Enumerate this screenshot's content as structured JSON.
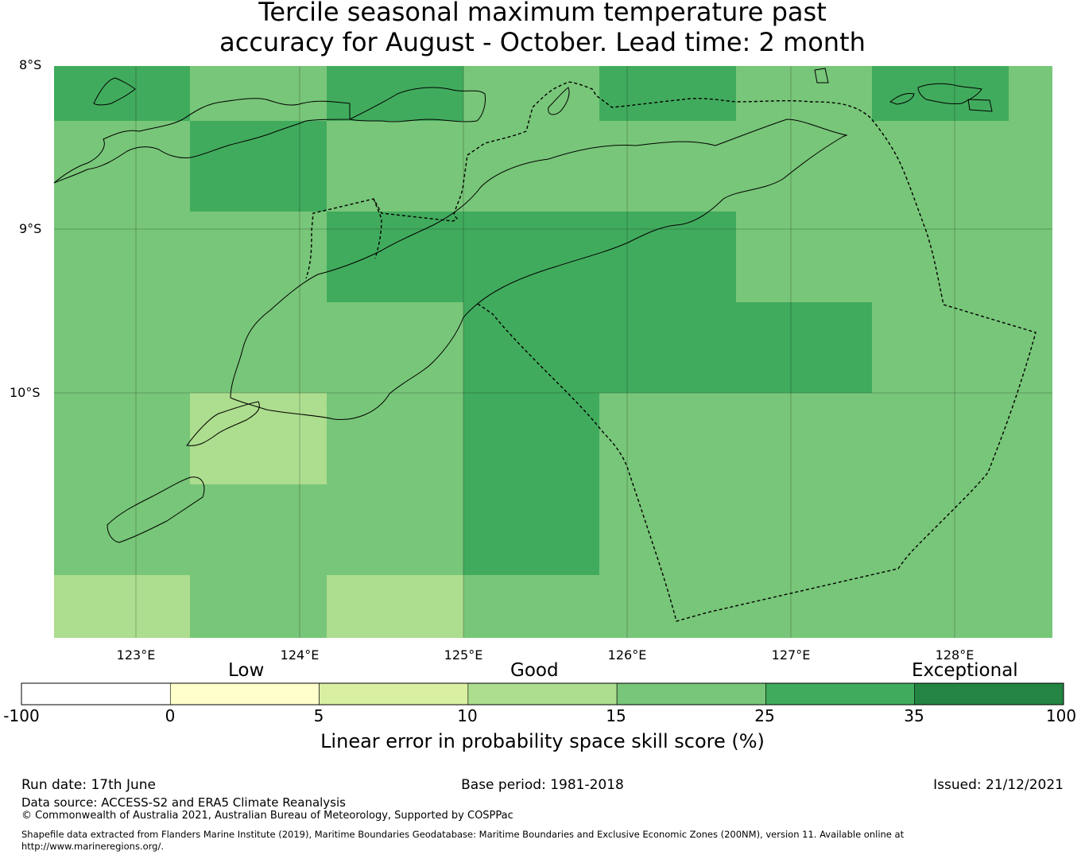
{
  "title": {
    "line1": "Tercile seasonal maximum temperature past",
    "line2": "accuracy for August - October. Lead time: 2 month"
  },
  "map": {
    "lat_labels": [
      "8°S",
      "9°S",
      "10°S"
    ],
    "lon_labels": [
      "123°E",
      "124°E",
      "125°E",
      "126°E",
      "127°E",
      "128°E"
    ],
    "lon_range": [
      122.5,
      128.6
    ],
    "lat_range": [
      -11.5,
      -8.0
    ],
    "grid_cell_deg": 0.833,
    "cell_levels": [
      [
        "25-35",
        "15-25",
        "25-35",
        "15-25",
        "25-35",
        "15-25",
        "25-35",
        "15-25"
      ],
      [
        "15-25",
        "25-35",
        "15-25",
        "15-25",
        "15-25",
        "15-25",
        "15-25",
        "15-25"
      ],
      [
        "15-25",
        "15-25",
        "25-35",
        "25-35",
        "25-35",
        "15-25",
        "15-25",
        "15-25"
      ],
      [
        "15-25",
        "15-25",
        "15-25",
        "25-35",
        "25-35",
        "25-35",
        "15-25",
        "15-25"
      ],
      [
        "15-25",
        "10-15",
        "15-25",
        "25-35",
        "15-25",
        "15-25",
        "15-25",
        "15-25"
      ],
      [
        "15-25",
        "15-25",
        "15-25",
        "25-35",
        "15-25",
        "15-25",
        "15-25",
        "15-25"
      ],
      [
        "10-15",
        "15-25",
        "10-15",
        "15-25",
        "15-25",
        "15-25",
        "15-25",
        "15-25"
      ]
    ]
  },
  "colorbar": {
    "categories": [
      "Low",
      "Good",
      "Exceptional"
    ],
    "ticks": [
      "-100",
      "0",
      "5",
      "10",
      "15",
      "25",
      "35",
      "100"
    ],
    "colors": [
      "#ffffff",
      "#ffffcc",
      "#d9f0a3",
      "#addd8e",
      "#78c679",
      "#41ab5d",
      "#238443"
    ],
    "title": "Linear error in probability space skill score (%)"
  },
  "footer": {
    "run_date": "Run date: 17th June",
    "base_period": "Base period: 1981-2018",
    "issued": "Issued: 21/12/2021",
    "data_source": "Data source: ACCESS-S2 and ERA5 Climate Reanalysis",
    "copyright": "© Commonwealth of Australia 2021, Australian Bureau of Meteorology, Supported by COSPPac",
    "shapefile_line1": "Shapefile data extracted from Flanders Marine Institute (2019), Maritime Boundaries Geodatabase: Maritime Boundaries and Exclusive Economic Zones (200NM), version 11. Available online at",
    "shapefile_line2": "http://www.marineregions.org/."
  }
}
